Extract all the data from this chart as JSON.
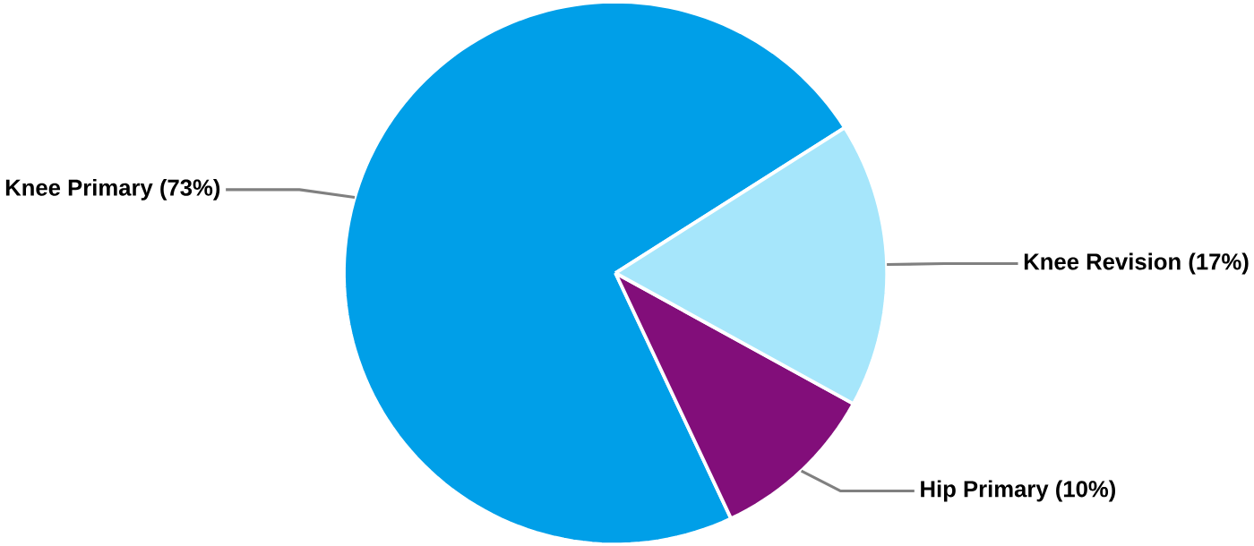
{
  "chart_data": {
    "type": "pie",
    "categories": [
      "Knee Primary (73%)",
      "Hip Primary (10%)",
      "Knee Revision (17%)"
    ],
    "values": [
      73,
      10,
      17
    ],
    "colors": [
      "#009fe8",
      "#820e7a",
      "#a6e6fb"
    ]
  }
}
